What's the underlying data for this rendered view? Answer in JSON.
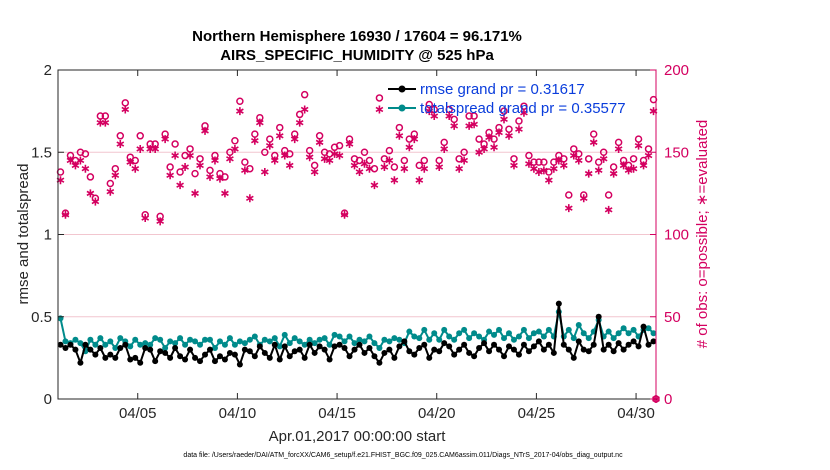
{
  "chart_data": {
    "type": "line",
    "title": "Northern Hemisphere 16930 / 17604 = 96.171%",
    "subtitle": "AIRS_SPECIFIC_HUMIDITY @ 525 hPa",
    "xlabel": "Apr.01,2017 00:00:00 start",
    "ylabel_left": "rmse and totalspread",
    "ylabel_right": "# of obs: o=possible; ∗=evaluated",
    "xlim": [
      1.0,
      31.0
    ],
    "ylim_left": [
      0,
      2
    ],
    "ylim_right": [
      0,
      200
    ],
    "x_ticks": [
      {
        "value": 5,
        "label": "04/05"
      },
      {
        "value": 10,
        "label": "04/10"
      },
      {
        "value": 15,
        "label": "04/15"
      },
      {
        "value": 20,
        "label": "04/20"
      },
      {
        "value": 25,
        "label": "04/25"
      },
      {
        "value": 30,
        "label": "04/30"
      }
    ],
    "y_ticks_left": [
      {
        "value": 0,
        "label": "0"
      },
      {
        "value": 0.5,
        "label": "0.5"
      },
      {
        "value": 1,
        "label": "1"
      },
      {
        "value": 1.5,
        "label": "1.5"
      },
      {
        "value": 2,
        "label": "2"
      }
    ],
    "y_ticks_right": [
      {
        "value": 0,
        "label": "0"
      },
      {
        "value": 50,
        "label": "50"
      },
      {
        "value": 100,
        "label": "100"
      },
      {
        "value": 150,
        "label": "150"
      },
      {
        "value": 200,
        "label": "200"
      }
    ],
    "x": [
      1.125,
      1.375,
      1.625,
      1.875,
      2.125,
      2.375,
      2.625,
      2.875,
      3.125,
      3.375,
      3.625,
      3.875,
      4.125,
      4.375,
      4.625,
      4.875,
      5.125,
      5.375,
      5.625,
      5.875,
      6.125,
      6.375,
      6.625,
      6.875,
      7.125,
      7.375,
      7.625,
      7.875,
      8.125,
      8.375,
      8.625,
      8.875,
      9.125,
      9.375,
      9.625,
      9.875,
      10.125,
      10.375,
      10.625,
      10.875,
      11.125,
      11.375,
      11.625,
      11.875,
      12.125,
      12.375,
      12.625,
      12.875,
      13.125,
      13.375,
      13.625,
      13.875,
      14.125,
      14.375,
      14.625,
      14.875,
      15.125,
      15.375,
      15.625,
      15.875,
      16.125,
      16.375,
      16.625,
      16.875,
      17.125,
      17.375,
      17.625,
      17.875,
      18.125,
      18.375,
      18.625,
      18.875,
      19.125,
      19.375,
      19.625,
      19.875,
      20.125,
      20.375,
      20.625,
      20.875,
      21.125,
      21.375,
      21.625,
      21.875,
      22.125,
      22.375,
      22.625,
      22.875,
      23.125,
      23.375,
      23.625,
      23.875,
      24.125,
      24.375,
      24.625,
      24.875,
      25.125,
      25.375,
      25.625,
      25.875,
      26.125,
      26.375,
      26.625,
      26.875,
      27.125,
      27.375,
      27.625,
      27.875,
      28.125,
      28.375,
      28.625,
      28.875,
      29.125,
      29.375,
      29.625,
      29.875,
      30.125,
      30.375,
      30.625,
      30.875
    ],
    "series": [
      {
        "name": "rmse",
        "axis": "left",
        "color": "#000000",
        "marker": "dot",
        "legend_label": "rmse grand pr = 0.31617",
        "values": [
          0.33,
          0.31,
          0.33,
          0.3,
          0.22,
          0.33,
          0.3,
          0.27,
          0.31,
          0.25,
          0.27,
          0.25,
          0.31,
          0.33,
          0.24,
          0.25,
          0.22,
          0.31,
          0.3,
          0.23,
          0.29,
          0.28,
          0.25,
          0.31,
          0.26,
          0.24,
          0.3,
          0.25,
          0.23,
          0.27,
          0.3,
          0.23,
          0.26,
          0.24,
          0.28,
          0.27,
          0.21,
          0.3,
          0.29,
          0.26,
          0.32,
          0.28,
          0.25,
          0.33,
          0.24,
          0.32,
          0.26,
          0.29,
          0.3,
          0.25,
          0.33,
          0.28,
          0.32,
          0.3,
          0.24,
          0.32,
          0.33,
          0.31,
          0.26,
          0.3,
          0.33,
          0.28,
          0.31,
          0.26,
          0.22,
          0.28,
          0.3,
          0.25,
          0.32,
          0.35,
          0.29,
          0.27,
          0.31,
          0.33,
          0.25,
          0.3,
          0.29,
          0.34,
          0.32,
          0.27,
          0.3,
          0.33,
          0.28,
          0.26,
          0.31,
          0.34,
          0.29,
          0.33,
          0.3,
          0.26,
          0.32,
          0.3,
          0.27,
          0.33,
          0.29,
          0.32,
          0.35,
          0.3,
          0.33,
          0.28,
          0.58,
          0.33,
          0.3,
          0.25,
          0.35,
          0.3,
          0.29,
          0.33,
          0.5,
          0.3,
          0.33,
          0.29,
          0.34,
          0.3,
          0.33,
          0.35,
          0.32,
          0.44,
          0.33,
          0.35
        ]
      },
      {
        "name": "totalspread",
        "axis": "left",
        "color": "#008b8b",
        "marker": "dot",
        "legend_label": "totalspread grand pr = 0.35577",
        "values": [
          0.49,
          0.35,
          0.34,
          0.36,
          0.34,
          0.29,
          0.36,
          0.33,
          0.37,
          0.33,
          0.35,
          0.31,
          0.37,
          0.35,
          0.32,
          0.36,
          0.33,
          0.34,
          0.33,
          0.37,
          0.36,
          0.31,
          0.35,
          0.34,
          0.37,
          0.33,
          0.36,
          0.35,
          0.33,
          0.36,
          0.36,
          0.31,
          0.35,
          0.33,
          0.37,
          0.33,
          0.35,
          0.34,
          0.36,
          0.38,
          0.33,
          0.36,
          0.35,
          0.37,
          0.32,
          0.39,
          0.34,
          0.37,
          0.35,
          0.33,
          0.36,
          0.34,
          0.36,
          0.37,
          0.33,
          0.39,
          0.38,
          0.35,
          0.38,
          0.34,
          0.36,
          0.35,
          0.38,
          0.34,
          0.31,
          0.36,
          0.35,
          0.37,
          0.36,
          0.34,
          0.41,
          0.38,
          0.37,
          0.42,
          0.36,
          0.4,
          0.36,
          0.42,
          0.38,
          0.36,
          0.4,
          0.42,
          0.37,
          0.4,
          0.38,
          0.36,
          0.41,
          0.39,
          0.42,
          0.37,
          0.4,
          0.36,
          0.38,
          0.42,
          0.37,
          0.4,
          0.41,
          0.38,
          0.42,
          0.38,
          0.53,
          0.38,
          0.42,
          0.37,
          0.45,
          0.4,
          0.37,
          0.41,
          0.48,
          0.38,
          0.41,
          0.37,
          0.4,
          0.43,
          0.4,
          0.42,
          0.38,
          0.42,
          0.43,
          0.4
        ]
      },
      {
        "name": "obs possible",
        "axis": "right",
        "color": "#d40060",
        "marker": "circle",
        "values": [
          138,
          113,
          148,
          145,
          150,
          149,
          135,
          122,
          172,
          172,
          131,
          140,
          160,
          180,
          147,
          145,
          160,
          112,
          155,
          155,
          111,
          161,
          141,
          155,
          138,
          148,
          152,
          137,
          146,
          166,
          139,
          148,
          137,
          135,
          150,
          157,
          181,
          144,
          140,
          161,
          171,
          150,
          158,
          148,
          165,
          151,
          149,
          161,
          173,
          185,
          151,
          142,
          160,
          150,
          149,
          153,
          154,
          113,
          158,
          146,
          145,
          150,
          145,
          140,
          183,
          146,
          151,
          141,
          165,
          145,
          158,
          161,
          142,
          145,
          179,
          176,
          145,
          156,
          176,
          170,
          146,
          150,
          172,
          172,
          158,
          155,
          162,
          158,
          165,
          175,
          164,
          146,
          169,
          178,
          148,
          144,
          144,
          144,
          138,
          144,
          148,
          146,
          124,
          152,
          149,
          124,
          146,
          161,
          144,
          150,
          124,
          141,
          156,
          145,
          142,
          146,
          158,
          145,
          152,
          182
        ],
        "legend_label": ""
      },
      {
        "name": "obs evaluated",
        "axis": "right",
        "color": "#d40060",
        "marker": "star",
        "values": [
          133,
          112,
          145,
          142,
          145,
          140,
          125,
          120,
          168,
          168,
          126,
          136,
          155,
          176,
          144,
          140,
          152,
          110,
          152,
          152,
          108,
          158,
          136,
          148,
          130,
          141,
          148,
          125,
          142,
          163,
          135,
          145,
          134,
          125,
          146,
          152,
          175,
          139,
          122,
          157,
          168,
          138,
          154,
          145,
          160,
          148,
          142,
          158,
          168,
          176,
          147,
          138,
          156,
          146,
          145,
          149,
          148,
          112,
          155,
          142,
          138,
          143,
          140,
          130,
          176,
          141,
          145,
          133,
          160,
          140,
          153,
          158,
          133,
          140,
          175,
          172,
          141,
          152,
          172,
          166,
          140,
          145,
          166,
          167,
          150,
          152,
          159,
          153,
          162,
          170,
          160,
          142,
          164,
          174,
          143,
          140,
          138,
          139,
          133,
          140,
          145,
          142,
          116,
          148,
          145,
          122,
          137,
          156,
          139,
          146,
          115,
          137,
          152,
          142,
          139,
          140,
          154,
          142,
          148,
          175
        ],
        "legend_label": ""
      }
    ],
    "footer": "data file: /Users/raeder/DAI/ATM_forcXX/CAM6_setup/f.e21.FHIST_BGC.f09_025.CAM6assim.011/Diags_NTrS_2017-04/obs_diag_output.nc"
  }
}
